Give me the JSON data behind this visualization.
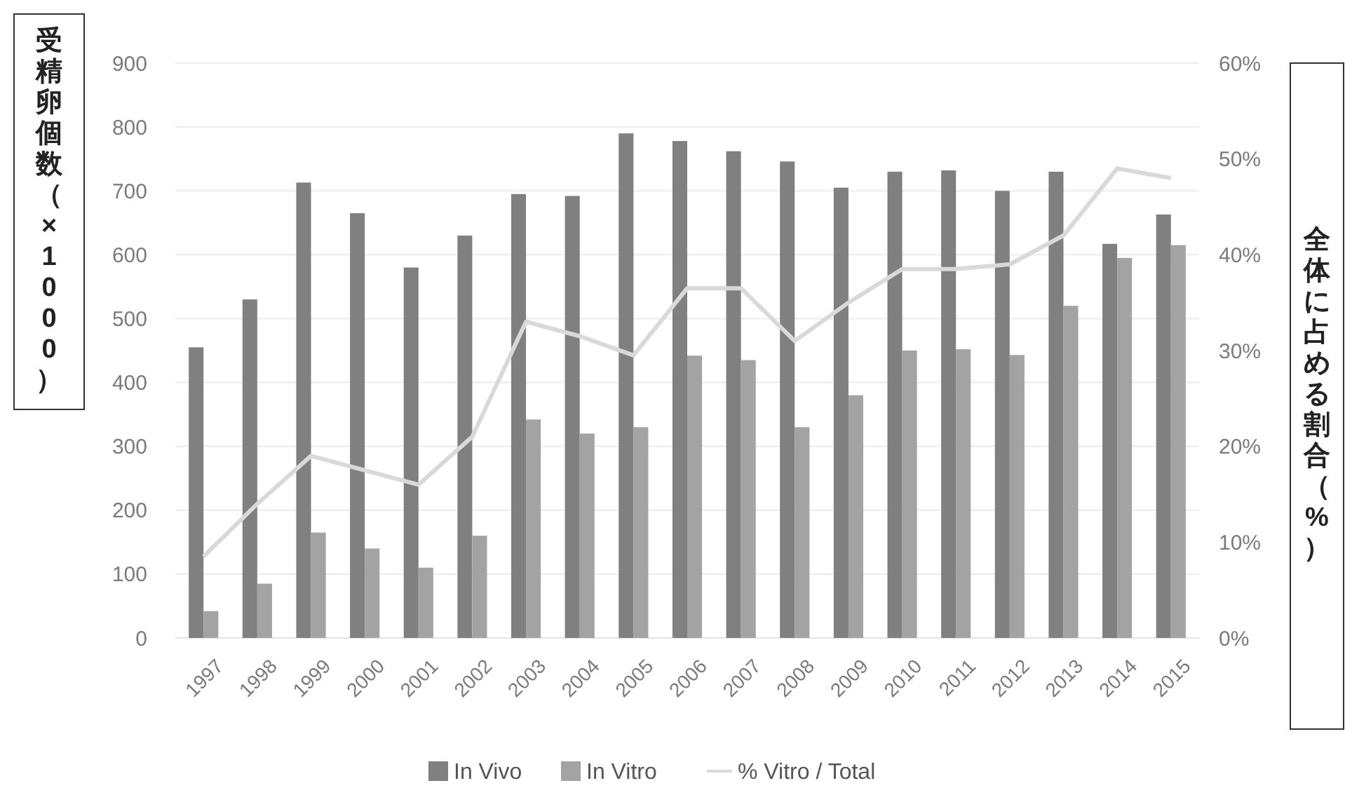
{
  "chart_data": {
    "type": "bar",
    "categories": [
      "1997",
      "1998",
      "1999",
      "2000",
      "2001",
      "2002",
      "2003",
      "2004",
      "2005",
      "2006",
      "2007",
      "2008",
      "2009",
      "2010",
      "2011",
      "2012",
      "2013",
      "2014",
      "2015"
    ],
    "ylabel": "受精卵個数（×1000）",
    "y2label": "全体に占める割合（%）",
    "ylim": [
      0,
      900
    ],
    "yticks": [
      0,
      100,
      200,
      300,
      400,
      500,
      600,
      700,
      800,
      900
    ],
    "y2lim": [
      0,
      60
    ],
    "y2ticks": [
      {
        "value": 0,
        "label": "0%"
      },
      {
        "value": 10,
        "label": "10%"
      },
      {
        "value": 20,
        "label": "20%"
      },
      {
        "value": 30,
        "label": "30%"
      },
      {
        "value": 40,
        "label": "40%"
      },
      {
        "value": 50,
        "label": "50%"
      },
      {
        "value": 60,
        "label": "60%"
      }
    ],
    "grid": "y",
    "legend": "bottom",
    "series": [
      {
        "name": "In Vivo",
        "color": "#808080",
        "values": [
          455,
          530,
          713,
          665,
          580,
          630,
          695,
          692,
          790,
          778,
          762,
          746,
          705,
          730,
          732,
          700,
          730,
          617,
          663
        ]
      },
      {
        "name": "In Vitro",
        "color": "#a3a3a3",
        "values": [
          42,
          85,
          165,
          140,
          110,
          160,
          342,
          320,
          330,
          442,
          435,
          330,
          380,
          450,
          452,
          443,
          520,
          595,
          615
        ]
      },
      {
        "name": "% Vitro / Total",
        "type": "line",
        "axis": "y2",
        "color": "#d9d9d9",
        "values": [
          8.5,
          14,
          19,
          17.5,
          16,
          21,
          33,
          31.5,
          29.5,
          36.5,
          36.5,
          31,
          35,
          38.5,
          38.5,
          39,
          42,
          49,
          48
        ]
      }
    ]
  }
}
